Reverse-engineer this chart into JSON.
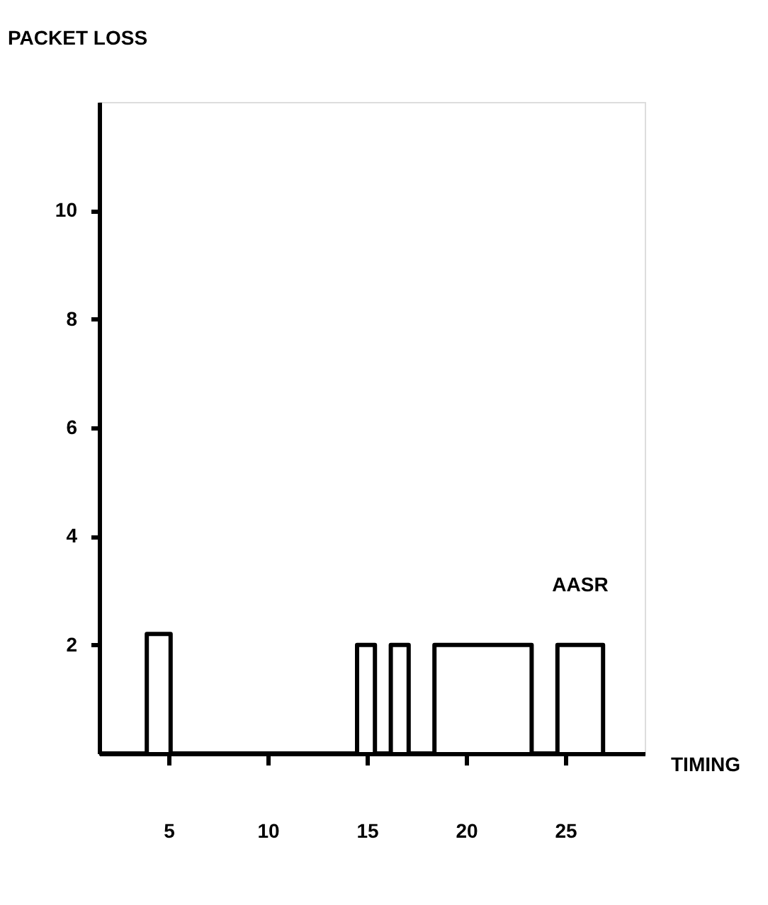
{
  "chart_data": {
    "type": "step",
    "xlabel": "TIMING",
    "ylabel": "PACKET LOSS",
    "x": [
      1.5,
      3.9,
      5.1,
      14.5,
      15.4,
      16.2,
      17.1,
      18.4,
      23.3,
      24.6,
      26.9
    ],
    "series": [
      {
        "name": "AASR",
        "color": "#000000",
        "values": [
          0,
          2.2,
          0,
          2,
          0,
          2,
          0,
          2,
          0,
          2,
          0
        ]
      }
    ],
    "xlim": [
      1.5,
      29
    ],
    "ylim": [
      0,
      12
    ],
    "xticks": [
      5,
      10,
      15,
      20,
      25
    ],
    "yticks": [
      2,
      4,
      6,
      8,
      10
    ],
    "grid": false,
    "line_style": "solid"
  }
}
